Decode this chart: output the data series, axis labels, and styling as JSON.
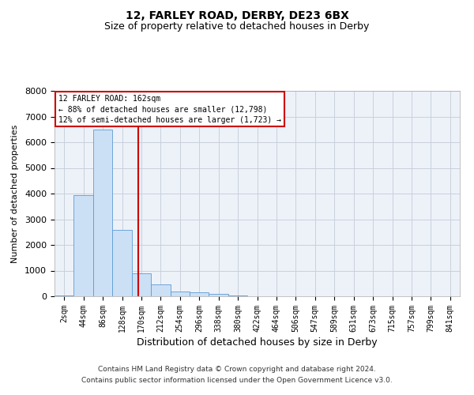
{
  "title_line1": "12, FARLEY ROAD, DERBY, DE23 6BX",
  "title_line2": "Size of property relative to detached houses in Derby",
  "xlabel": "Distribution of detached houses by size in Derby",
  "ylabel": "Number of detached properties",
  "bar_labels": [
    "2sqm",
    "44sqm",
    "86sqm",
    "128sqm",
    "170sqm",
    "212sqm",
    "254sqm",
    "296sqm",
    "338sqm",
    "380sqm",
    "422sqm",
    "464sqm",
    "506sqm",
    "547sqm",
    "589sqm",
    "631sqm",
    "673sqm",
    "715sqm",
    "757sqm",
    "799sqm",
    "841sqm"
  ],
  "bar_values": [
    30,
    3950,
    6500,
    2600,
    900,
    450,
    200,
    150,
    100,
    40,
    10,
    0,
    0,
    0,
    0,
    0,
    0,
    0,
    0,
    0,
    0
  ],
  "bar_color": "#cce0f5",
  "bar_edge_color": "#5b9bd5",
  "vline_x": 3.83,
  "vline_color": "#cc0000",
  "ylim": [
    0,
    8000
  ],
  "yticks": [
    0,
    1000,
    2000,
    3000,
    4000,
    5000,
    6000,
    7000,
    8000
  ],
  "annotation_box_text": "12 FARLEY ROAD: 162sqm\n← 88% of detached houses are smaller (12,798)\n12% of semi-detached houses are larger (1,723) →",
  "annotation_box_color": "#cc0000",
  "footer_line1": "Contains HM Land Registry data © Crown copyright and database right 2024.",
  "footer_line2": "Contains public sector information licensed under the Open Government Licence v3.0.",
  "background_color": "#edf2f9",
  "grid_color": "#c8d0dc",
  "fig_bg_color": "#ffffff",
  "title_fontsize": 10,
  "subtitle_fontsize": 9,
  "ylabel_fontsize": 8,
  "xlabel_fontsize": 9,
  "ytick_fontsize": 8,
  "xtick_fontsize": 7,
  "annotation_fontsize": 7,
  "footer_fontsize": 6.5
}
